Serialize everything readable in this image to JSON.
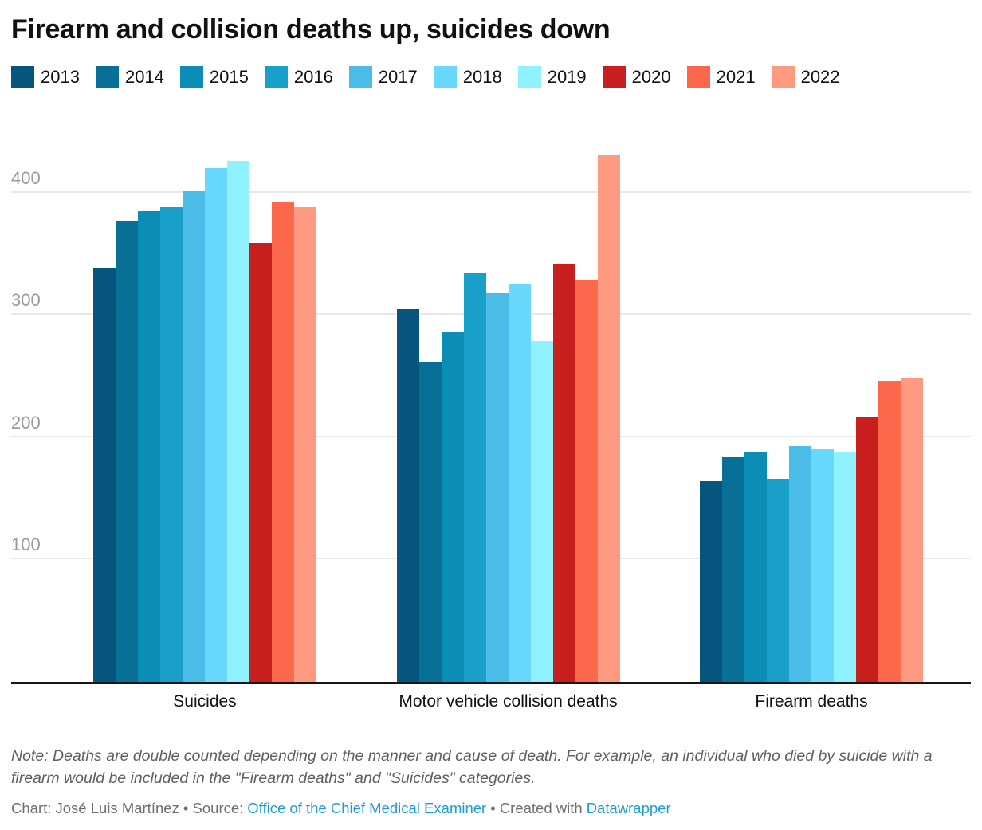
{
  "title": "Firearm and collision deaths up, suicides down",
  "chart_data": {
    "type": "bar",
    "title": "Firearm and collision deaths up, suicides down",
    "categories": [
      "Suicides",
      "Motor vehicle collision deaths",
      "Firearm deaths"
    ],
    "series": [
      {
        "name": "2013",
        "color": "#07557c",
        "values": [
          338,
          305,
          164
        ]
      },
      {
        "name": "2014",
        "color": "#086f96",
        "values": [
          377,
          261,
          184
        ]
      },
      {
        "name": "2015",
        "color": "#0b8db6",
        "values": [
          385,
          286,
          188
        ]
      },
      {
        "name": "2016",
        "color": "#18a0ca",
        "values": [
          388,
          334,
          166
        ]
      },
      {
        "name": "2017",
        "color": "#4bbce8",
        "values": [
          401,
          318,
          193
        ]
      },
      {
        "name": "2018",
        "color": "#68d8fd",
        "values": [
          420,
          326,
          190
        ]
      },
      {
        "name": "2019",
        "color": "#90f2fe",
        "values": [
          426,
          279,
          188
        ]
      },
      {
        "name": "2020",
        "color": "#c71e1e",
        "values": [
          359,
          342,
          217
        ]
      },
      {
        "name": "2021",
        "color": "#fc684b",
        "values": [
          392,
          329,
          246
        ]
      },
      {
        "name": "2022",
        "color": "#fe9a7f",
        "values": [
          388,
          431,
          249
        ]
      }
    ],
    "xlabel": "",
    "ylabel": "",
    "ylim": [
      0,
      456
    ],
    "yticks": [
      100,
      200,
      300,
      400
    ],
    "grid": true,
    "legend_position": "top",
    "grid_color": "#e8e8e8",
    "axis_color": "#161616",
    "tick_label_color": "#9a9a9a"
  },
  "footer": {
    "note": "Note: Deaths are double counted depending on the manner and cause of death. For example, an individual who died by suicide with a firearm would be included in the \"Firearm deaths\" and \"Suicides\" categories.",
    "byline_chart": "Chart: José Luis Martínez • Source:",
    "source_link": "Office of the Chief Medical Examiner",
    "byline_created": "• Created with",
    "created_link": "Datawrapper",
    "link_color": "#1d9cd3"
  }
}
